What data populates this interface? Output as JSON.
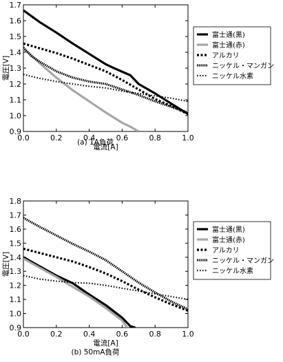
{
  "chart_data": [
    {
      "type": "line",
      "caption": "(a)  1A負荷",
      "xlabel": "電流[A]",
      "ylabel": "電圧[V]",
      "xlim": [
        0.0,
        1.0
      ],
      "ylim": [
        0.9,
        1.7
      ],
      "xticks": [
        "0.0",
        "0.2",
        "0.4",
        "0.6",
        "0.8",
        "1.0"
      ],
      "yticks": [
        "0.9",
        "1.0",
        "1.1",
        "1.2",
        "1.3",
        "1.4",
        "1.5",
        "1.6",
        "1.7"
      ],
      "grid": false,
      "legend_position": "right",
      "series": [
        {
          "name": "富士通(黒)",
          "style": "solid-black",
          "points": [
            [
              0.0,
              1.665
            ],
            [
              0.1,
              1.59
            ],
            [
              0.2,
              1.525
            ],
            [
              0.3,
              1.455
            ],
            [
              0.4,
              1.39
            ],
            [
              0.5,
              1.325
            ],
            [
              0.55,
              1.3
            ],
            [
              0.65,
              1.255
            ],
            [
              0.7,
              1.2
            ],
            [
              0.8,
              1.14
            ],
            [
              0.9,
              1.075
            ],
            [
              1.0,
              1.01
            ]
          ]
        },
        {
          "name": "富士通(赤)",
          "style": "solid-gray",
          "points": [
            [
              0.0,
              1.42
            ],
            [
              0.05,
              1.38
            ],
            [
              0.1,
              1.33
            ],
            [
              0.2,
              1.24
            ],
            [
              0.3,
              1.16
            ],
            [
              0.4,
              1.09
            ],
            [
              0.5,
              1.02
            ],
            [
              0.6,
              0.955
            ],
            [
              0.65,
              0.93
            ],
            [
              0.7,
              0.9
            ]
          ]
        },
        {
          "name": "アルカリ",
          "style": "dashed",
          "points": [
            [
              0.0,
              1.455
            ],
            [
              0.1,
              1.425
            ],
            [
              0.2,
              1.395
            ],
            [
              0.3,
              1.36
            ],
            [
              0.4,
              1.32
            ],
            [
              0.5,
              1.28
            ],
            [
              0.6,
              1.225
            ],
            [
              0.7,
              1.165
            ],
            [
              0.8,
              1.105
            ],
            [
              0.9,
              1.06
            ],
            [
              1.0,
              1.01
            ]
          ]
        },
        {
          "name": "ニッケル・マンガン",
          "style": "dense-dotted",
          "points": [
            [
              0.0,
              1.43
            ],
            [
              0.05,
              1.375
            ],
            [
              0.1,
              1.34
            ],
            [
              0.2,
              1.28
            ],
            [
              0.3,
              1.24
            ],
            [
              0.4,
              1.215
            ],
            [
              0.5,
              1.2
            ],
            [
              0.6,
              1.165
            ],
            [
              0.7,
              1.13
            ],
            [
              0.8,
              1.09
            ],
            [
              0.9,
              1.055
            ],
            [
              1.0,
              1.02
            ]
          ]
        },
        {
          "name": "ニッケル水素",
          "style": "sparse-dotted",
          "points": [
            [
              0.0,
              1.26
            ],
            [
              0.1,
              1.235
            ],
            [
              0.2,
              1.215
            ],
            [
              0.3,
              1.2
            ],
            [
              0.4,
              1.185
            ],
            [
              0.5,
              1.175
            ],
            [
              0.6,
              1.155
            ],
            [
              0.7,
              1.14
            ],
            [
              0.8,
              1.125
            ],
            [
              0.9,
              1.11
            ],
            [
              1.0,
              1.09
            ]
          ]
        }
      ]
    },
    {
      "type": "line",
      "caption": "(b)  50mA負荷",
      "xlabel": "電流[A]",
      "ylabel": "電圧[V]",
      "xlim": [
        0.0,
        1.0
      ],
      "ylim": [
        0.9,
        1.8
      ],
      "xticks": [
        "0.0",
        "0.2",
        "0.4",
        "0.6",
        "0.8",
        "1.0"
      ],
      "yticks": [
        "0.9",
        "1.0",
        "1.1",
        "1.2",
        "1.3",
        "1.4",
        "1.5",
        "1.6",
        "1.7",
        "1.8"
      ],
      "grid": false,
      "legend_position": "right",
      "series": [
        {
          "name": "富士通(黒)",
          "style": "solid-black",
          "points": [
            [
              0.0,
              1.4
            ],
            [
              0.1,
              1.335
            ],
            [
              0.2,
              1.27
            ],
            [
              0.3,
              1.215
            ],
            [
              0.4,
              1.135
            ],
            [
              0.5,
              1.06
            ],
            [
              0.6,
              0.97
            ],
            [
              0.65,
              0.91
            ],
            [
              0.68,
              0.9
            ]
          ]
        },
        {
          "name": "富士通(赤)",
          "style": "solid-gray",
          "points": [
            [
              0.0,
              1.39
            ],
            [
              0.1,
              1.325
            ],
            [
              0.2,
              1.26
            ],
            [
              0.3,
              1.19
            ],
            [
              0.4,
              1.12
            ],
            [
              0.5,
              1.04
            ],
            [
              0.6,
              0.95
            ],
            [
              0.63,
              0.9
            ]
          ]
        },
        {
          "name": "アルカリ",
          "style": "dashed",
          "points": [
            [
              0.0,
              1.46
            ],
            [
              0.1,
              1.43
            ],
            [
              0.2,
              1.4
            ],
            [
              0.3,
              1.37
            ],
            [
              0.4,
              1.33
            ],
            [
              0.5,
              1.285
            ],
            [
              0.6,
              1.23
            ],
            [
              0.7,
              1.17
            ],
            [
              0.8,
              1.115
            ],
            [
              0.9,
              1.065
            ],
            [
              1.0,
              1.02
            ]
          ]
        },
        {
          "name": "ニッケル・マンガン",
          "style": "dense-dotted",
          "points": [
            [
              0.0,
              1.68
            ],
            [
              0.1,
              1.615
            ],
            [
              0.2,
              1.555
            ],
            [
              0.3,
              1.495
            ],
            [
              0.4,
              1.44
            ],
            [
              0.5,
              1.38
            ],
            [
              0.6,
              1.3
            ],
            [
              0.7,
              1.22
            ],
            [
              0.8,
              1.15
            ],
            [
              0.9,
              1.085
            ],
            [
              1.0,
              1.03
            ]
          ]
        },
        {
          "name": "ニッケル水素",
          "style": "sparse-dotted",
          "points": [
            [
              0.0,
              1.27
            ],
            [
              0.1,
              1.245
            ],
            [
              0.2,
              1.23
            ],
            [
              0.3,
              1.22
            ],
            [
              0.4,
              1.215
            ],
            [
              0.5,
              1.2
            ],
            [
              0.6,
              1.18
            ],
            [
              0.7,
              1.16
            ],
            [
              0.8,
              1.14
            ],
            [
              0.9,
              1.12
            ],
            [
              1.0,
              1.1
            ]
          ]
        }
      ]
    }
  ],
  "colors": {
    "solid-black": "#000000",
    "solid-gray": "#a6a6a6",
    "dashed": "#000000",
    "dense-dotted": "#000000",
    "sparse-dotted": "#000000"
  }
}
